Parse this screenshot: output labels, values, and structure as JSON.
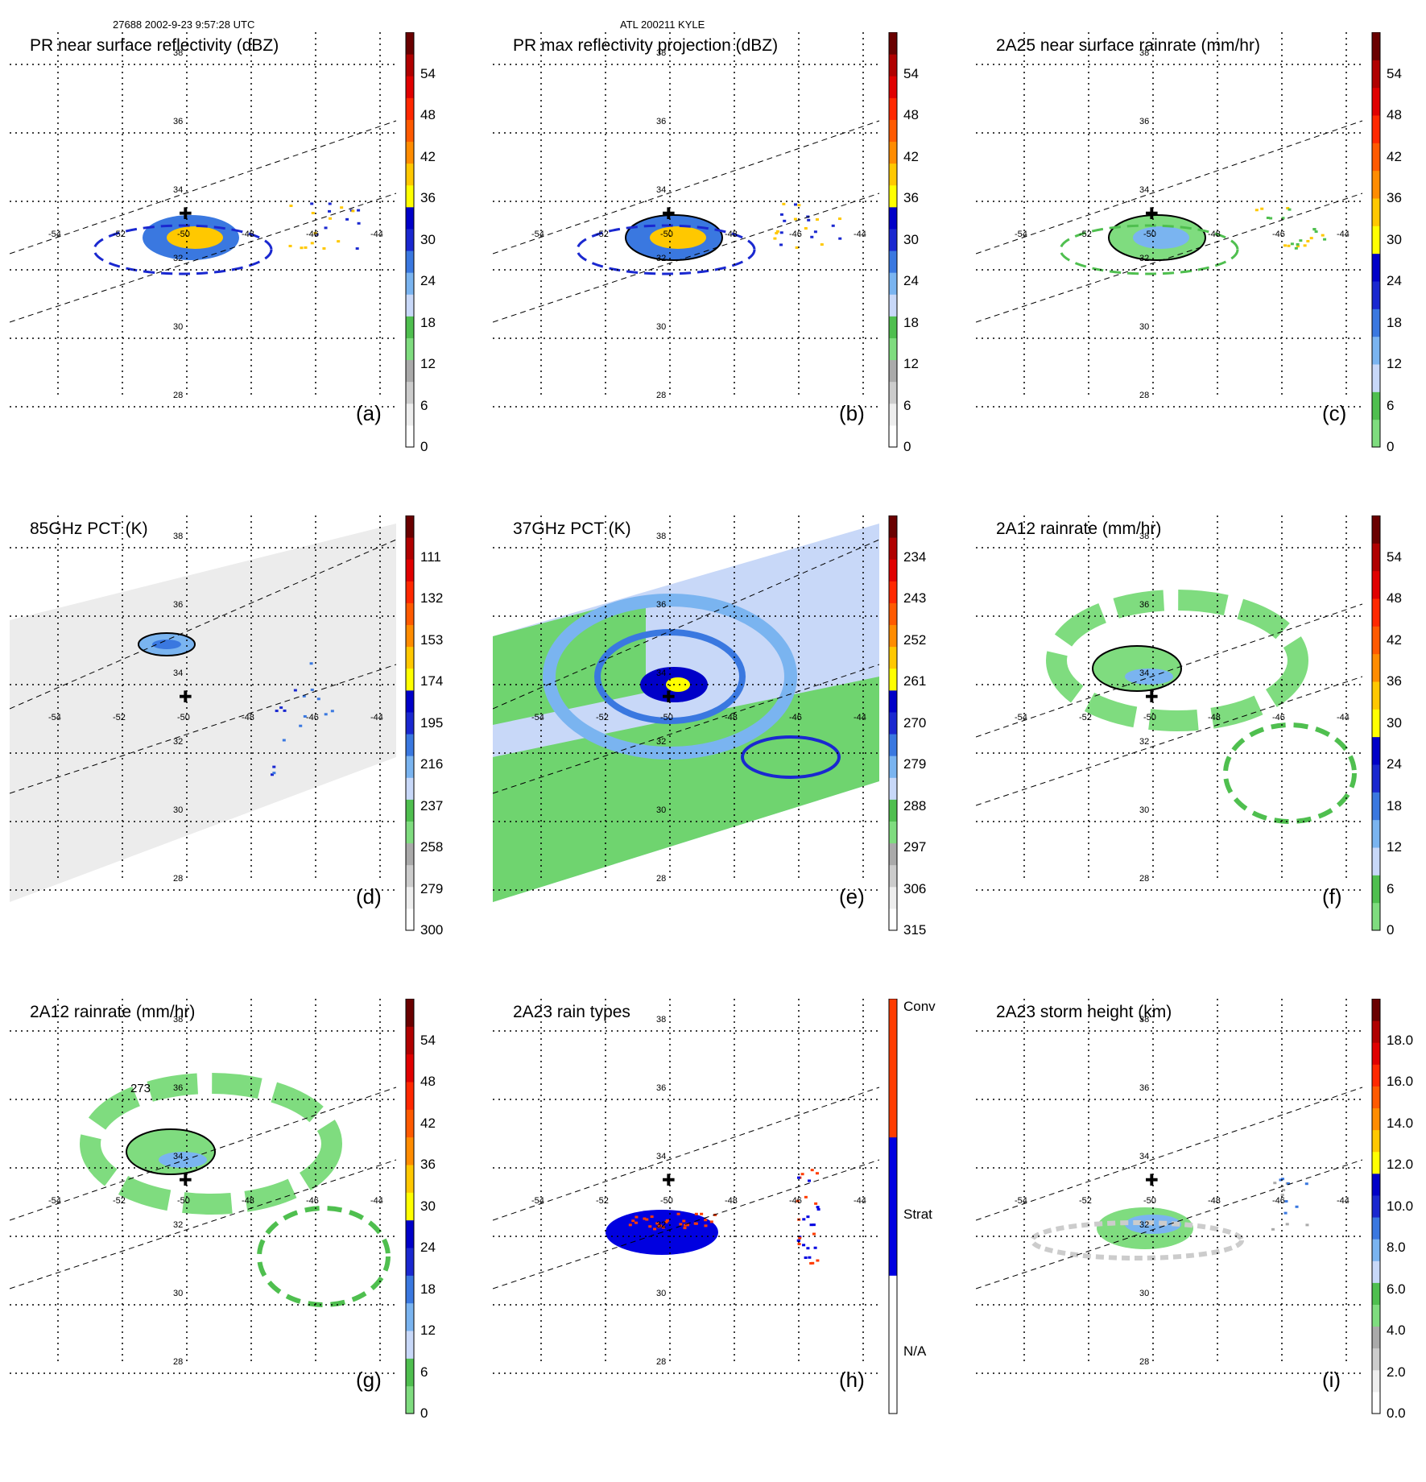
{
  "header": {
    "left": "27688 2002-9-23 9:57:28 UTC",
    "center": "ATL 200211 KYLE"
  },
  "grid_labels": {
    "lons": [
      "-54",
      "-52",
      "-50",
      "-48",
      "-46",
      "-44"
    ],
    "lats": [
      "38",
      "36",
      "34",
      "32",
      "30",
      "28"
    ]
  },
  "colors": {
    "gridline": "#000000",
    "swath": "#000000",
    "contour": "#000000"
  },
  "panels": [
    {
      "id": "a",
      "title": "PR near surface reflectivity (dBZ)",
      "label": "(a)",
      "colorbar": {
        "labels": [
          "0",
          "6",
          "12",
          "18",
          "24",
          "30",
          "36",
          "42",
          "48",
          "54"
        ],
        "colors": [
          "#ffffff",
          "#eeeeee",
          "#cccccc",
          "#aaaaaa",
          "#7fdc7f",
          "#4fbf4f",
          "#c8d8f8",
          "#7ab4f0",
          "#3a78e0",
          "#1a28d0",
          "#0000c8",
          "#ffff00",
          "#ffc800",
          "#ff8c00",
          "#ff5a00",
          "#ff2800",
          "#e00000",
          "#b00000",
          "#6a0000"
        ]
      }
    },
    {
      "id": "b",
      "title": "PR max reflectivity projection (dBZ)",
      "label": "(b)",
      "colorbar": {
        "labels": [
          "0",
          "6",
          "12",
          "18",
          "24",
          "30",
          "36",
          "42",
          "48",
          "54"
        ],
        "colors": [
          "#ffffff",
          "#eeeeee",
          "#cccccc",
          "#aaaaaa",
          "#7fdc7f",
          "#4fbf4f",
          "#c8d8f8",
          "#7ab4f0",
          "#3a78e0",
          "#1a28d0",
          "#0000c8",
          "#ffff00",
          "#ffc800",
          "#ff8c00",
          "#ff5a00",
          "#ff2800",
          "#e00000",
          "#b00000",
          "#6a0000"
        ]
      }
    },
    {
      "id": "c",
      "title": "2A25 near surface rainrate (mm/hr)",
      "label": "(c)",
      "colorbar": {
        "labels": [
          "0",
          "6",
          "12",
          "18",
          "24",
          "30",
          "36",
          "42",
          "48",
          "54"
        ],
        "colors": [
          "#7fdc7f",
          "#4fbf4f",
          "#c8d8f8",
          "#7ab4f0",
          "#3a78e0",
          "#1a28d0",
          "#0000c8",
          "#ffff00",
          "#ffc800",
          "#ff8c00",
          "#ff5a00",
          "#ff2800",
          "#e00000",
          "#b00000",
          "#6a0000"
        ]
      }
    },
    {
      "id": "d",
      "title": "85GHz PCT (K)",
      "label": "(d)",
      "colorbar": {
        "labels": [
          "300",
          "279",
          "258",
          "237",
          "216",
          "195",
          "174",
          "153",
          "132",
          "111"
        ],
        "colors": [
          "#ffffff",
          "#eeeeee",
          "#cccccc",
          "#aaaaaa",
          "#7fdc7f",
          "#4fbf4f",
          "#c8d8f8",
          "#7ab4f0",
          "#3a78e0",
          "#1a28d0",
          "#0000c8",
          "#ffff00",
          "#ffc800",
          "#ff8c00",
          "#ff5a00",
          "#ff2800",
          "#e00000",
          "#b00000",
          "#6a0000"
        ]
      }
    },
    {
      "id": "e",
      "title": "37GHz PCT (K)",
      "label": "(e)",
      "colorbar": {
        "labels": [
          "315",
          "306",
          "297",
          "288",
          "279",
          "270",
          "261",
          "252",
          "243",
          "234"
        ],
        "colors": [
          "#ffffff",
          "#eeeeee",
          "#cccccc",
          "#aaaaaa",
          "#7fdc7f",
          "#4fbf4f",
          "#c8d8f8",
          "#7ab4f0",
          "#3a78e0",
          "#1a28d0",
          "#0000c8",
          "#ffff00",
          "#ffc800",
          "#ff8c00",
          "#ff5a00",
          "#ff2800",
          "#e00000",
          "#b00000",
          "#6a0000"
        ]
      }
    },
    {
      "id": "f",
      "title": "2A12 rainrate (mm/hr)",
      "label": "(f)",
      "colorbar": {
        "labels": [
          "0",
          "6",
          "12",
          "18",
          "24",
          "30",
          "36",
          "42",
          "48",
          "54"
        ],
        "colors": [
          "#7fdc7f",
          "#4fbf4f",
          "#c8d8f8",
          "#7ab4f0",
          "#3a78e0",
          "#1a28d0",
          "#0000c8",
          "#ffff00",
          "#ffc800",
          "#ff8c00",
          "#ff5a00",
          "#ff2800",
          "#e00000",
          "#b00000",
          "#6a0000"
        ]
      }
    },
    {
      "id": "g",
      "title": "2A12 rainrate (mm/hr)",
      "label": "(g)",
      "contour_label": "273",
      "colorbar": {
        "labels": [
          "0",
          "6",
          "12",
          "18",
          "24",
          "30",
          "36",
          "42",
          "48",
          "54"
        ],
        "colors": [
          "#7fdc7f",
          "#4fbf4f",
          "#c8d8f8",
          "#7ab4f0",
          "#3a78e0",
          "#1a28d0",
          "#0000c8",
          "#ffff00",
          "#ffc800",
          "#ff8c00",
          "#ff5a00",
          "#ff2800",
          "#e00000",
          "#b00000",
          "#6a0000"
        ]
      }
    },
    {
      "id": "h",
      "title": "2A23 rain types",
      "label": "(h)",
      "colorbar": {
        "labels": [
          "N/A",
          "Strat",
          "Conv"
        ],
        "colors": [
          "#ffffff",
          "#0000e0",
          "#ff3c00"
        ]
      }
    },
    {
      "id": "i",
      "title": "2A23 storm height (km)",
      "label": "(i)",
      "colorbar": {
        "labels": [
          "0.0",
          "2.0",
          "4.0",
          "6.0",
          "8.0",
          "10.0",
          "12.0",
          "14.0",
          "16.0",
          "18.0"
        ],
        "colors": [
          "#ffffff",
          "#eeeeee",
          "#cccccc",
          "#aaaaaa",
          "#7fdc7f",
          "#4fbf4f",
          "#c8d8f8",
          "#7ab4f0",
          "#3a78e0",
          "#1a28d0",
          "#0000c8",
          "#ffff00",
          "#ffc800",
          "#ff8c00",
          "#ff5a00",
          "#ff2800",
          "#e00000",
          "#b00000",
          "#6a0000"
        ]
      }
    }
  ]
}
